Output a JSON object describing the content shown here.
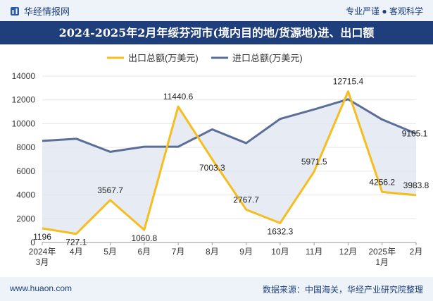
{
  "header": {
    "brand": "华经情报网",
    "tagline": "专业严谨 ● 客观科学"
  },
  "footer": {
    "url": "www.huaon.com",
    "source": "数据来源：中国海关，华经产业研究院整理"
  },
  "colors": {
    "export": "#f5bd1e",
    "import": "#5b6e99",
    "fill": "#dfe5f0",
    "title_bg": "#1f3e7c"
  },
  "chart_data": {
    "type": "line",
    "title": "2024-2025年2月年绥芬河市(境内目的地/货源地)进、出口额",
    "xlabel": "",
    "ylabel": "",
    "ylim": [
      0,
      14000
    ],
    "yticks": [
      0,
      2000,
      4000,
      6000,
      8000,
      10000,
      12000,
      14000
    ],
    "categories": [
      "2024年3月",
      "4月",
      "5月",
      "6月",
      "7月",
      "8月",
      "9月",
      "10月",
      "11月",
      "12月",
      "2025年1月",
      "2月"
    ],
    "series": [
      {
        "name": "出口总额(万美元)",
        "values": [
          1196,
          727.1,
          3567.7,
          1060.8,
          11440.6,
          7003.3,
          2767.7,
          1632.3,
          5971.5,
          12715.4,
          4256.2,
          3983.8
        ],
        "labels": [
          "1196",
          "727.1",
          "3567.7",
          "1060.8",
          "11440.6",
          "7003.3",
          "2767.7",
          "1632.3",
          "5971.5",
          "12715.4",
          "4256.2",
          "3983.8"
        ]
      },
      {
        "name": "进口总额(万美元)",
        "values": [
          8550,
          8730,
          7630,
          8060,
          8060,
          9520,
          8360,
          10400,
          11200,
          12050,
          10350,
          9165.1
        ],
        "labels": [
          "",
          "",
          "",
          "",
          "",
          "",
          "",
          "",
          "",
          "",
          "",
          "9165.1"
        ]
      }
    ],
    "legend": "top"
  }
}
